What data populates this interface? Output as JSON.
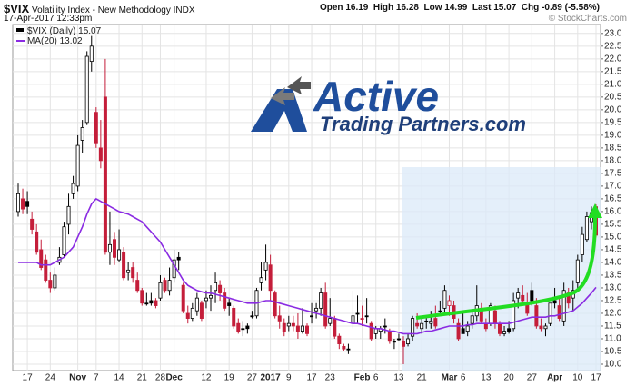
{
  "header": {
    "symbol": "$VIX",
    "name": "Volatility Index - New Methodology INDX",
    "timestamp": "17-Apr-2017 12:33pm",
    "copyright": "© StockCharts.com",
    "quote_labels": [
      "Open",
      "High",
      "Low",
      "Last",
      "Chg"
    ],
    "change": -0.89,
    "change_pct": "(-5.58%)"
  },
  "logo": {
    "line1": "Active",
    "line2": "Trading Partners.com"
  },
  "chart_data": {
    "type": "candlestick",
    "name": "$VIX (Daily)",
    "up_color": "#000000",
    "down_color": "#c41e3a",
    "categories": [
      null,
      null,
      "17",
      null,
      null,
      null,
      null,
      "24",
      null,
      null,
      null,
      null,
      null,
      "Nov",
      null,
      null,
      null,
      "7",
      null,
      null,
      null,
      null,
      "14",
      null,
      null,
      null,
      null,
      "21",
      null,
      null,
      null,
      "28",
      null,
      null,
      "Dec",
      null,
      null,
      null,
      null,
      null,
      null,
      "12",
      null,
      null,
      null,
      null,
      "19",
      null,
      null,
      null,
      null,
      "27",
      null,
      null,
      null,
      "2017",
      null,
      null,
      null,
      "9",
      null,
      null,
      null,
      null,
      "17",
      null,
      null,
      null,
      "23",
      null,
      null,
      null,
      null,
      null,
      null,
      "Feb",
      null,
      null,
      "6",
      null,
      null,
      null,
      null,
      "13",
      null,
      null,
      null,
      null,
      "21",
      null,
      null,
      null,
      null,
      null,
      "Mar",
      null,
      null,
      "6",
      null,
      null,
      null,
      null,
      "13",
      null,
      null,
      null,
      null,
      "20",
      null,
      null,
      null,
      null,
      "27",
      null,
      null,
      null,
      null,
      "Apr",
      null,
      null,
      null,
      null,
      "10",
      null,
      null,
      null,
      "17"
    ],
    "open": [
      16.0,
      16.5,
      16.4,
      15.7,
      15.2,
      14.5,
      14.1,
      13.3,
      13.0,
      14.0,
      14.3,
      15.5,
      16.7,
      17.0,
      18.8,
      19.5,
      21.9,
      19.9,
      18.5,
      20.5,
      14.4,
      14.9,
      14.1,
      14.4,
      13.6,
      13.8,
      13.3,
      12.9,
      12.4,
      12.5,
      12.5,
      12.6,
      13.3,
      12.9,
      13.4,
      14.2,
      13.1,
      12.0,
      11.8,
      12.1,
      12.4,
      12.5,
      12.6,
      12.9,
      13.1,
      12.8,
      12.4,
      12.2,
      11.6,
      11.4,
      11.5,
      11.9,
      11.9,
      13.2,
      13.7,
      13.9,
      12.8,
      11.9,
      11.6,
      11.5,
      11.6,
      11.5,
      11.3,
      11.5,
      11.9,
      12.1,
      12.2,
      12.8,
      11.6,
      11.8,
      11.1,
      10.7,
      10.6,
      11.6,
      12.0,
      11.8,
      11.9,
      11.6,
      11.2,
      11.3,
      11.5,
      11.3,
      10.9,
      11.0,
      10.9,
      10.8,
      11.1,
      11.6,
      11.4,
      11.7,
      11.6,
      11.8,
      12.1,
      12.2,
      12.3,
      12.3,
      11.6,
      11.4,
      11.3,
      11.6,
      11.9,
      12.2,
      11.6,
      11.6,
      12.1,
      11.6,
      11.2,
      11.4,
      11.4,
      12.6,
      12.7,
      12.4,
      12.9,
      12.3,
      11.5,
      11.4,
      11.6,
      12.5,
      12.3,
      11.7,
      12.8,
      12.6,
      13.2,
      14.3,
      14.9,
      15.6,
      16.19
    ],
    "high": [
      17.1,
      16.9,
      16.8,
      16.0,
      15.5,
      14.9,
      14.3,
      13.6,
      13.8,
      14.6,
      15.6,
      16.7,
      17.4,
      19.0,
      19.6,
      22.3,
      22.9,
      20.1,
      19.6,
      22.0,
      16.0,
      15.2,
      15.3,
      14.6,
      14.0,
      14.0,
      13.6,
      13.0,
      12.8,
      12.8,
      12.6,
      13.5,
      13.4,
      13.8,
      14.5,
      14.4,
      13.2,
      12.3,
      12.4,
      12.8,
      12.5,
      12.9,
      13.1,
      13.6,
      13.3,
      13.0,
      12.6,
      12.3,
      11.8,
      11.7,
      11.6,
      12.1,
      13.0,
      14.0,
      14.7,
      14.3,
      12.9,
      12.3,
      11.8,
      11.9,
      11.9,
      12.0,
      12.2,
      11.6,
      12.4,
      12.4,
      13.0,
      13.2,
      12.6,
      11.9,
      11.2,
      10.8,
      10.8,
      12.9,
      12.7,
      12.3,
      12.6,
      11.7,
      11.5,
      11.5,
      11.8,
      11.4,
      11.0,
      11.2,
      11.1,
      11.2,
      11.9,
      12.0,
      11.8,
      11.9,
      12.1,
      12.3,
      12.5,
      13.1,
      12.7,
      12.5,
      11.8,
      12.0,
      11.7,
      12.1,
      13.1,
      12.4,
      11.8,
      12.4,
      12.3,
      11.7,
      11.5,
      11.7,
      12.8,
      13.0,
      13.1,
      12.8,
      13.2,
      12.6,
      11.8,
      11.6,
      12.4,
      13.0,
      12.6,
      13.2,
      13.0,
      13.3,
      14.3,
      15.4,
      16.0,
      16.2,
      16.28
    ],
    "low": [
      15.8,
      15.9,
      15.9,
      15.1,
      14.3,
      13.7,
      13.2,
      12.8,
      12.9,
      13.9,
      14.2,
      15.1,
      16.5,
      16.8,
      18.3,
      19.4,
      21.5,
      18.5,
      17.7,
      14.3,
      13.9,
      13.9,
      14.0,
      13.3,
      13.3,
      13.2,
      12.8,
      12.3,
      12.3,
      12.3,
      12.2,
      12.5,
      12.8,
      12.7,
      13.2,
      13.7,
      12.0,
      11.6,
      11.7,
      11.9,
      11.7,
      12.2,
      12.1,
      12.4,
      12.5,
      12.1,
      11.9,
      11.4,
      11.2,
      11.1,
      11.2,
      11.8,
      11.8,
      12.9,
      13.3,
      12.5,
      11.8,
      11.4,
      11.1,
      11.3,
      11.3,
      11.0,
      11.2,
      11.1,
      11.6,
      11.8,
      11.9,
      11.4,
      11.5,
      11.0,
      10.6,
      10.5,
      10.4,
      11.4,
      11.6,
      11.5,
      11.6,
      10.9,
      11.0,
      11.0,
      11.2,
      10.8,
      10.6,
      10.9,
      10.0,
      10.7,
      10.9,
      11.4,
      11.2,
      11.4,
      11.4,
      11.4,
      11.9,
      12.0,
      11.9,
      11.6,
      10.9,
      11.2,
      11.1,
      11.4,
      11.7,
      11.6,
      11.3,
      11.5,
      11.4,
      11.1,
      11.1,
      11.2,
      11.3,
      12.2,
      12.3,
      11.9,
      12.3,
      11.4,
      11.3,
      11.1,
      11.5,
      12.2,
      11.7,
      11.5,
      12.2,
      12.1,
      12.9,
      14.0,
      14.8,
      15.3,
      14.99
    ],
    "close": [
      16.7,
      16.1,
      16.2,
      15.3,
      14.4,
      13.8,
      13.3,
      13.0,
      13.5,
      14.2,
      15.4,
      16.2,
      17.1,
      18.6,
      19.3,
      22.1,
      22.5,
      18.7,
      18.0,
      14.4,
      14.7,
      14.2,
      14.5,
      13.4,
      13.7,
      13.4,
      12.9,
      12.4,
      12.4,
      12.4,
      12.3,
      13.2,
      12.9,
      13.3,
      14.1,
      14.1,
      12.1,
      11.8,
      12.2,
      12.6,
      11.8,
      12.6,
      12.7,
      13.2,
      12.8,
      12.2,
      12.3,
      11.5,
      11.3,
      11.4,
      11.4,
      11.9,
      12.9,
      13.4,
      14.0,
      12.9,
      11.9,
      11.7,
      11.3,
      11.6,
      11.5,
      11.3,
      11.5,
      11.2,
      11.9,
      12.2,
      12.8,
      11.5,
      11.8,
      11.1,
      10.8,
      10.6,
      10.6,
      11.9,
      12.0,
      11.8,
      11.9,
      11.0,
      11.4,
      11.4,
      11.5,
      10.9,
      10.9,
      11.0,
      10.7,
      11.0,
      11.8,
      11.5,
      11.6,
      11.7,
      11.7,
      11.5,
      12.1,
      12.9,
      12.5,
      11.8,
      11.0,
      11.2,
      11.5,
      11.9,
      12.3,
      11.7,
      11.4,
      12.3,
      11.6,
      11.2,
      11.3,
      11.3,
      12.5,
      12.8,
      12.5,
      12.0,
      12.5,
      11.5,
      11.4,
      11.5,
      12.4,
      12.4,
      11.8,
      12.9,
      12.4,
      12.9,
      14.1,
      15.1,
      15.8,
      15.96,
      15.07
    ],
    "ma": {
      "name": "MA(20)",
      "color": "#8a2be2",
      "values": [
        14.0,
        14.0,
        14.0,
        14.0,
        14.0,
        13.9,
        13.9,
        13.9,
        14.0,
        14.1,
        14.2,
        14.4,
        14.6,
        15.0,
        15.4,
        15.9,
        16.3,
        16.5,
        16.4,
        16.3,
        16.2,
        16.1,
        16.0,
        15.95,
        15.9,
        15.8,
        15.7,
        15.6,
        15.4,
        15.2,
        15.0,
        14.8,
        14.5,
        14.2,
        13.9,
        13.6,
        13.3,
        13.1,
        13.0,
        12.9,
        12.85,
        12.8,
        12.8,
        12.75,
        12.7,
        12.65,
        12.6,
        12.55,
        12.5,
        12.45,
        12.4,
        12.4,
        12.4,
        12.45,
        12.5,
        12.5,
        12.45,
        12.4,
        12.35,
        12.3,
        12.25,
        12.2,
        12.15,
        12.1,
        12.05,
        12.0,
        11.95,
        11.9,
        11.85,
        11.8,
        11.75,
        11.7,
        11.65,
        11.6,
        11.6,
        11.55,
        11.5,
        11.45,
        11.4,
        11.4,
        11.35,
        11.3,
        11.3,
        11.25,
        11.2,
        11.2,
        11.2,
        11.2,
        11.25,
        11.3,
        11.3,
        11.35,
        11.4,
        11.45,
        11.5,
        11.5,
        11.5,
        11.5,
        11.55,
        11.55,
        11.6,
        11.6,
        11.6,
        11.6,
        11.6,
        11.6,
        11.6,
        11.6,
        11.65,
        11.7,
        11.75,
        11.8,
        11.85,
        11.85,
        11.85,
        11.85,
        11.9,
        11.9,
        11.95,
        12.0,
        12.05,
        12.1,
        12.25,
        12.4,
        12.6,
        12.8,
        13.02
      ]
    },
    "ylim": [
      9.75,
      23.35
    ],
    "yticks": [
      {
        "value": 10,
        "label": "10.0"
      },
      10.5,
      {
        "value": 11,
        "label": "11.0"
      },
      11.5,
      {
        "value": 12,
        "label": "12.0"
      },
      12.5,
      {
        "value": 13,
        "label": "13.0"
      },
      13.5,
      {
        "value": 14,
        "label": "14.0"
      },
      14.5,
      {
        "value": 15,
        "label": "15.0"
      },
      15.5,
      {
        "value": 16,
        "label": "16.0"
      },
      16.5,
      {
        "value": 17,
        "label": "17.0"
      },
      17.5,
      {
        "value": 18,
        "label": "18.0"
      },
      18.5,
      {
        "value": 19,
        "label": "19.0"
      },
      19.5,
      {
        "value": 20,
        "label": "20.0"
      },
      20.5,
      {
        "value": 21,
        "label": "21.0"
      },
      21.5,
      {
        "value": 22,
        "label": "22.0"
      },
      22.5,
      {
        "value": 23,
        "label": "23.0"
      }
    ],
    "grid": true
  }
}
